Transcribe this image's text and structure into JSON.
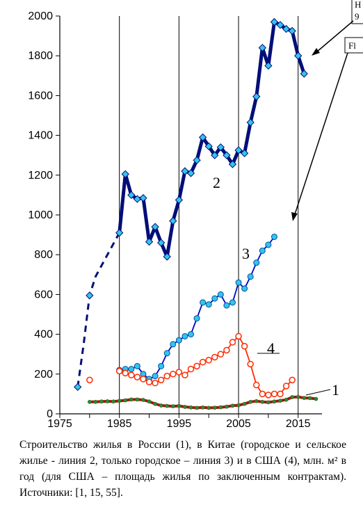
{
  "chart_data": {
    "type": "line",
    "xlim": [
      1975,
      2019
    ],
    "ylim": [
      0,
      2000
    ],
    "x_ticks": [
      "1975",
      "1985",
      "1995",
      "2005",
      "2015"
    ],
    "y_ticks": [
      "0",
      "200",
      "400",
      "600",
      "800",
      "1000",
      "1200",
      "1400",
      "1600",
      "1800",
      "2000"
    ],
    "grid": "vertical",
    "series": [
      {
        "name": "1",
        "color": "#b01010",
        "marker_color": "#2e8b2e",
        "style": "thick",
        "points": [
          [
            1980,
            60
          ],
          [
            1981,
            60
          ],
          [
            1982,
            62
          ],
          [
            1983,
            63
          ],
          [
            1984,
            62
          ],
          [
            1985,
            65
          ],
          [
            1986,
            68
          ],
          [
            1987,
            72
          ],
          [
            1988,
            72
          ],
          [
            1989,
            70
          ],
          [
            1990,
            62
          ],
          [
            1991,
            50
          ],
          [
            1992,
            42
          ],
          [
            1993,
            40
          ],
          [
            1994,
            38
          ],
          [
            1995,
            40
          ],
          [
            1996,
            35
          ],
          [
            1997,
            32
          ],
          [
            1998,
            30
          ],
          [
            1999,
            32
          ],
          [
            2000,
            30
          ],
          [
            2001,
            31
          ],
          [
            2002,
            33
          ],
          [
            2003,
            36
          ],
          [
            2004,
            41
          ],
          [
            2005,
            43
          ],
          [
            2006,
            50
          ],
          [
            2007,
            60
          ],
          [
            2008,
            64
          ],
          [
            2009,
            60
          ],
          [
            2010,
            58
          ],
          [
            2011,
            62
          ],
          [
            2012,
            66
          ],
          [
            2013,
            71
          ],
          [
            2014,
            84
          ],
          [
            2015,
            85
          ],
          [
            2016,
            80
          ],
          [
            2017,
            79
          ],
          [
            2018,
            75
          ]
        ]
      },
      {
        "name": "2",
        "color": "#000e78",
        "marker_color": "#33c4ee",
        "style": "thick",
        "dashed_points": [
          [
            1978,
            135
          ],
          [
            1979,
            350
          ],
          [
            1980,
            595
          ],
          [
            1981,
            690
          ],
          [
            1983,
            800
          ],
          [
            1985,
            910
          ]
        ],
        "points": [
          [
            1985,
            910
          ],
          [
            1986,
            1205
          ],
          [
            1987,
            1100
          ],
          [
            1988,
            1080
          ],
          [
            1989,
            1085
          ],
          [
            1990,
            865
          ],
          [
            1991,
            940
          ],
          [
            1992,
            860
          ],
          [
            1993,
            790
          ],
          [
            1994,
            970
          ],
          [
            1995,
            1075
          ],
          [
            1996,
            1220
          ],
          [
            1997,
            1210
          ],
          [
            1998,
            1275
          ],
          [
            1999,
            1390
          ],
          [
            2000,
            1345
          ],
          [
            2001,
            1300
          ],
          [
            2002,
            1340
          ],
          [
            2003,
            1300
          ],
          [
            2004,
            1255
          ],
          [
            2005,
            1325
          ],
          [
            2006,
            1310
          ],
          [
            2007,
            1465
          ],
          [
            2008,
            1595
          ],
          [
            2009,
            1840
          ],
          [
            2010,
            1750
          ],
          [
            2011,
            1970
          ],
          [
            2012,
            1955
          ],
          [
            2013,
            1935
          ],
          [
            2014,
            1925
          ],
          [
            2015,
            1800
          ],
          [
            2016,
            1710
          ]
        ]
      },
      {
        "name": "3",
        "color": "#0000c8",
        "marker_color": "#33c4ee",
        "style": "thin",
        "points": [
          [
            1985,
            220
          ],
          [
            1986,
            225
          ],
          [
            1987,
            225
          ],
          [
            1988,
            240
          ],
          [
            1989,
            200
          ],
          [
            1990,
            175
          ],
          [
            1991,
            190
          ],
          [
            1992,
            240
          ],
          [
            1993,
            305
          ],
          [
            1994,
            350
          ],
          [
            1995,
            370
          ],
          [
            1996,
            390
          ],
          [
            1997,
            400
          ],
          [
            1998,
            480
          ],
          [
            1999,
            560
          ],
          [
            2000,
            550
          ],
          [
            2001,
            580
          ],
          [
            2002,
            600
          ],
          [
            2003,
            545
          ],
          [
            2004,
            560
          ],
          [
            2005,
            660
          ],
          [
            2006,
            630
          ],
          [
            2007,
            690
          ],
          [
            2008,
            760
          ],
          [
            2009,
            820
          ],
          [
            2010,
            850
          ],
          [
            2011,
            890
          ]
        ]
      },
      {
        "name": "4",
        "color": "#ff2a00",
        "marker_color": "#ffffff",
        "style": "thin",
        "single_point": [
          1980,
          170
        ],
        "points": [
          [
            1985,
            215
          ],
          [
            1986,
            205
          ],
          [
            1987,
            195
          ],
          [
            1988,
            185
          ],
          [
            1989,
            175
          ],
          [
            1990,
            160
          ],
          [
            1991,
            155
          ],
          [
            1992,
            170
          ],
          [
            1993,
            190
          ],
          [
            1994,
            200
          ],
          [
            1995,
            210
          ],
          [
            1996,
            195
          ],
          [
            1997,
            225
          ],
          [
            1998,
            240
          ],
          [
            1999,
            260
          ],
          [
            2000,
            270
          ],
          [
            2001,
            285
          ],
          [
            2002,
            300
          ],
          [
            2003,
            320
          ],
          [
            2004,
            360
          ],
          [
            2005,
            390
          ],
          [
            2006,
            340
          ],
          [
            2007,
            250
          ],
          [
            2008,
            145
          ],
          [
            2009,
            100
          ],
          [
            2010,
            95
          ],
          [
            2011,
            100
          ],
          [
            2012,
            100
          ],
          [
            2013,
            140
          ],
          [
            2014,
            170
          ]
        ]
      }
    ],
    "line_labels": [
      "1",
      "2",
      "3",
      "4"
    ],
    "single_markers": [
      [
        1978,
        135
      ]
    ]
  },
  "callouts": [
    "Н\n9",
    "Fl"
  ],
  "caption": "Строительство жилья в России (1), в Китае (городское и сельское жилье - линия 2, только городское – линия 3) и в США (4), млн. м² в год (для США – площадь жилья по заключенным контрактам). Источники: [1, 15, 55]."
}
